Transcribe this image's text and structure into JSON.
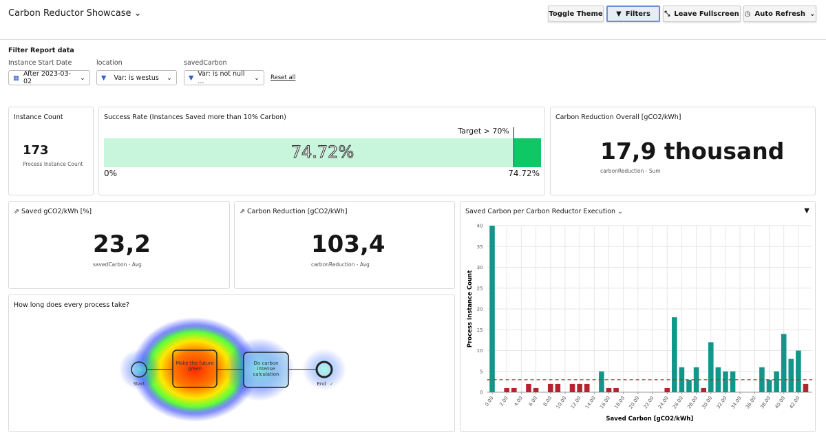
{
  "header": {
    "title": "Carbon Reductor Showcase",
    "buttons": [
      "Toggle Theme",
      "Filters",
      "Leave Fullscreen",
      "Auto Refresh"
    ]
  },
  "filters": {
    "title": "Filter Report data",
    "fields": [
      {
        "label": "Instance Start Date",
        "value": "After 2023-03-02"
      },
      {
        "label": "location",
        "value": "Var: is westus"
      },
      {
        "label": "savedCarbon",
        "value": "Var: is not null ..."
      }
    ],
    "reset": "Reset all"
  },
  "instance_count": {
    "title": "Instance Count",
    "value": "173",
    "caption": "Process Instance Count"
  },
  "success_rate": {
    "title": "Success Rate (Instances Saved more than 10% Carbon)",
    "value": 74.72,
    "label": "74.72%",
    "target": 70,
    "target_label": "Target > 70%",
    "axis_min": 0,
    "axis_min_label": "0%",
    "axis_max_label": "74.72%"
  },
  "overall": {
    "title": "Carbon Reduction Overall [gCO2/kWh]",
    "value": "17,9 thousand",
    "caption": "carbonReduction - Sum"
  },
  "saved": {
    "title": "Saved gCO2/kWh [%]",
    "value": "23,2",
    "caption": "savedCarbon - Avg"
  },
  "reduction": {
    "title": "Carbon Reduction [gCO2/kWh]",
    "value": "103,4",
    "caption": "carbonReduction - Avg"
  },
  "process": {
    "title": "How long does every process take?",
    "nodes": [
      {
        "label": "Start"
      },
      {
        "label": "Make the future green"
      },
      {
        "label": "Do carbon intense calculation"
      },
      {
        "label": "End"
      }
    ]
  },
  "chart_data": {
    "type": "bar",
    "title": "Saved Carbon per Carbon Reductor Execution",
    "x_label": "Saved Carbon [gCO2/kWh]",
    "y_label": "Process Instance Count",
    "x": [
      0,
      2,
      3,
      5,
      6,
      8,
      9,
      11,
      12,
      13,
      15,
      16,
      17,
      24,
      25,
      26,
      27,
      28,
      29,
      30,
      31,
      32,
      33,
      37,
      38,
      39,
      40,
      41,
      42,
      43
    ],
    "values": [
      40,
      1,
      1,
      2,
      1,
      2,
      2,
      2,
      2,
      2,
      5,
      1,
      1,
      1,
      18,
      6,
      3,
      6,
      1,
      12,
      6,
      5,
      5,
      6,
      3,
      5,
      14,
      8,
      10,
      2
    ],
    "color": "#12968a",
    "below_color": "#b3242f",
    "threshold": 3,
    "threshold_color": "#c0282f",
    "xlim": [
      -0.7,
      43.9
    ],
    "ylim": [
      0,
      40
    ],
    "xticks": [
      {
        "value": 0,
        "label": "0.00"
      },
      {
        "value": 2,
        "label": "2.00"
      },
      {
        "value": 4,
        "label": "4.00"
      },
      {
        "value": 6,
        "label": "6.00"
      },
      {
        "value": 8,
        "label": "8.00"
      },
      {
        "value": 10,
        "label": "10.00"
      },
      {
        "value": 12,
        "label": "12.00"
      },
      {
        "value": 14,
        "label": "14.00"
      },
      {
        "value": 16,
        "label": "16.00"
      },
      {
        "value": 18,
        "label": "18.00"
      },
      {
        "value": 20,
        "label": "20.00"
      },
      {
        "value": 22,
        "label": "22.00"
      },
      {
        "value": 24,
        "label": "24.00"
      },
      {
        "value": 26,
        "label": "26.00"
      },
      {
        "value": 28,
        "label": "28.00"
      },
      {
        "value": 30,
        "label": "30.00"
      },
      {
        "value": 32,
        "label": "32.00"
      },
      {
        "value": 34,
        "label": "34.00"
      },
      {
        "value": 36,
        "label": "36.00"
      },
      {
        "value": 38,
        "label": "38.00"
      },
      {
        "value": 40,
        "label": "40.00"
      },
      {
        "value": 42,
        "label": "42.00"
      }
    ],
    "yticks": [
      0,
      5,
      10,
      15,
      20,
      25,
      30,
      35,
      40
    ],
    "grid": true
  }
}
